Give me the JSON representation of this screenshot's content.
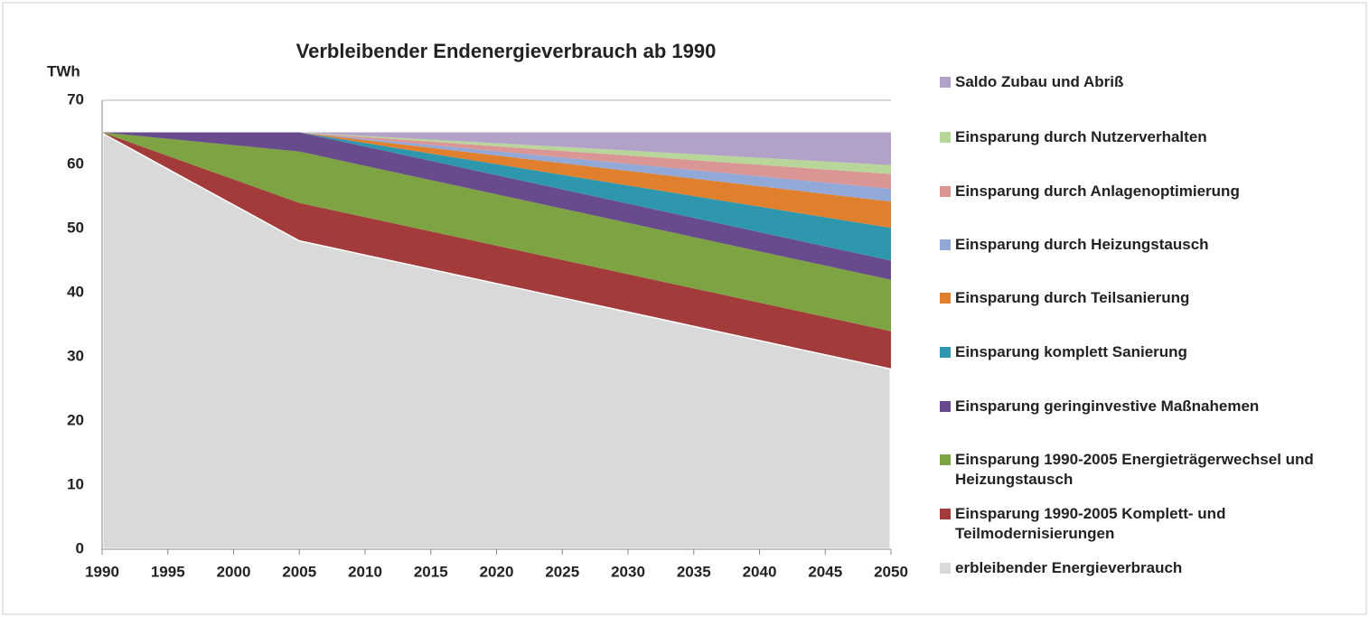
{
  "chart_data": {
    "type": "stacked_area",
    "title": "Verbleibender Endenergieverbrauch ab 1990",
    "y_label": "TWh",
    "x": [
      1990,
      2005,
      2050
    ],
    "series": [
      {
        "name": "erbleibender Energieverbrauch",
        "color": "#d9d9d9",
        "values": [
          65,
          48.2,
          28.2
        ]
      },
      {
        "name": "Einsparung 1990-2005 Komplett- und Teilmodernisierungen",
        "color": "#a33b3a",
        "values": [
          0,
          5.8,
          5.8
        ]
      },
      {
        "name": "Einsparung 1990-2005  Energieträgerwechsel und Heizungstausch",
        "color": "#7ea342",
        "values": [
          0,
          8,
          8
        ]
      },
      {
        "name": "Einsparung geringinvestive Maßnahemen",
        "color": "#674b8c",
        "values": [
          0,
          3,
          3
        ]
      },
      {
        "name": "Einsparung komplett Sanierung",
        "color": "#2e97ad",
        "values": [
          0,
          0,
          5.1
        ]
      },
      {
        "name": "Einsparung durch Teilsanierung",
        "color": "#e07f2e",
        "values": [
          0,
          0,
          4.1
        ]
      },
      {
        "name": "Einsparung durch Heizungstausch",
        "color": "#92a9d8",
        "values": [
          0,
          0,
          2
        ]
      },
      {
        "name": "Einsparung durch Anlagenoptimierung",
        "color": "#d99694",
        "values": [
          0,
          0,
          2.3
        ]
      },
      {
        "name": "Einsparung durch Nutzerverhalten",
        "color": "#b8d59a",
        "values": [
          0,
          0,
          1.4
        ]
      },
      {
        "name": "Saldo Zubau und  Abriß",
        "color": "#b3a2c7",
        "values": [
          0,
          0,
          5.1
        ]
      }
    ],
    "xlim": [
      1990,
      2050
    ],
    "xticks": [
      1990,
      1995,
      2000,
      2005,
      2010,
      2015,
      2020,
      2025,
      2030,
      2035,
      2040,
      2045,
      2050
    ],
    "ylim": [
      0,
      70
    ],
    "yticks": [
      0,
      10,
      20,
      30,
      40,
      50,
      60,
      70
    ],
    "grid": true,
    "legend": "right"
  }
}
